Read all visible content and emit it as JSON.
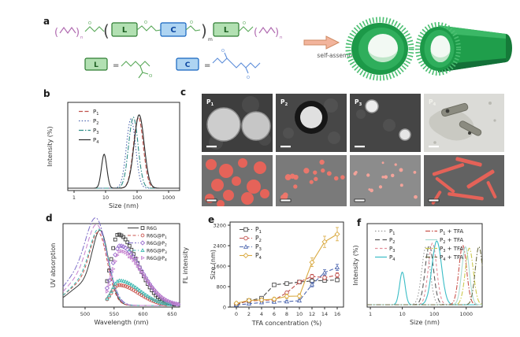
{
  "panel_labels": {
    "a": "a",
    "b": "b",
    "c": "c",
    "d": "d",
    "e": "e",
    "f": "f"
  },
  "panel_a": {
    "box_l": "L",
    "box_c": "C",
    "equals": "=",
    "paren_open": "(",
    "paren_close": ")",
    "sub_n": "n",
    "sub_m": "m",
    "o_atom": "O",
    "arrow_label": "self-assembly",
    "colors": {
      "peg": "#b06ab0",
      "linker": "#57a757",
      "c_unit": "#5b8dd9",
      "l_fill": "#b2e0b2",
      "l_border": "#2e7d32",
      "c_fill": "#aed4f2",
      "c_border": "#1565c0",
      "arrow_fill": "#f2b49c",
      "arrow_border": "#cf8a63",
      "tube_green": "#1c9948"
    }
  },
  "panel_c": {
    "tiles_top": [
      {
        "t": "P",
        "s": "1"
      },
      {
        "t": "P",
        "s": "2"
      },
      {
        "t": "P",
        "s": "3"
      },
      {
        "t": "P",
        "s": "4"
      }
    ]
  },
  "chart_data": [
    {
      "id": "b",
      "type": "line",
      "xscale": "log",
      "xlabel": "Size (nm)",
      "ylabel": "Intensity (%)",
      "xlim_log": [
        -0.2,
        3.35
      ],
      "xticks": [
        {
          "v": 0,
          "t": "1"
        },
        {
          "v": 1,
          "t": "10"
        },
        {
          "v": 2,
          "t": "100"
        },
        {
          "v": 3,
          "t": "1000"
        }
      ],
      "legend_position": "top-left",
      "grid": false,
      "series": [
        {
          "name": {
            "t": "P",
            "s": "1"
          },
          "color": "#bf504a",
          "dash": "5 2.5",
          "peaks": [
            {
              "size_nm": 110,
              "intensity": 92,
              "wlog": 0.155
            }
          ]
        },
        {
          "name": {
            "t": "P",
            "s": "2"
          },
          "color": "#5069b0",
          "dash": "1.5 2.2",
          "peaks": [
            {
              "size_nm": 64,
              "intensity": 90,
              "wlog": 0.145
            }
          ]
        },
        {
          "name": {
            "t": "P",
            "s": "3"
          },
          "color": "#2f8c86",
          "dash": "6 2 1.5 2",
          "peaks": [
            {
              "size_nm": 76,
              "intensity": 92,
              "wlog": 0.15
            }
          ]
        },
        {
          "name": {
            "t": "P",
            "s": "4"
          },
          "color": "#2b2b2b",
          "dash": "",
          "peaks": [
            {
              "size_nm": 9,
              "intensity": 44,
              "wlog": 0.085
            },
            {
              "size_nm": 116,
              "intensity": 95,
              "wlog": 0.16
            }
          ]
        }
      ]
    },
    {
      "id": "d",
      "type": "spectra",
      "xlabel": "Wavelength (nm)",
      "ylabel_left": "UV absorption",
      "ylabel_right": "FL intensity",
      "xlim": [
        462,
        663
      ],
      "xticks": [
        500,
        550,
        600,
        650
      ],
      "absorption": [
        {
          "name": "R6G",
          "color": "#3a3a3a",
          "dash": "",
          "peak_nm": 527,
          "height": 86,
          "width_nm": 14,
          "shoulder": {
            "peak_nm": 497,
            "height": 26,
            "width_nm": 26
          }
        },
        {
          "name": "R6G@P1",
          "color": "#c9534c",
          "dash": "4 2.5",
          "peak_nm": 524,
          "height": 82,
          "width_nm": 15,
          "shoulder": {
            "peak_nm": 494,
            "height": 28,
            "width_nm": 26
          }
        },
        {
          "name": "R6G@P2",
          "color": "#7d6ec9",
          "dash": "7 2 2 2",
          "peak_nm": 521,
          "height": 93,
          "width_nm": 18,
          "shoulder": {
            "peak_nm": 490,
            "height": 40,
            "width_nm": 28
          }
        },
        {
          "name": "R6G@P3",
          "color": "#3db8b0",
          "dash": "4 2.5",
          "peak_nm": 525,
          "height": 85,
          "width_nm": 16,
          "shoulder": {
            "peak_nm": 495,
            "height": 30,
            "width_nm": 26
          }
        },
        {
          "name": "R6G@P4",
          "color": "#c583cf",
          "dash": "6 3",
          "peak_nm": 522,
          "height": 88,
          "width_nm": 17,
          "shoulder": {
            "peak_nm": 492,
            "height": 34,
            "width_nm": 27
          }
        }
      ],
      "emission": [
        {
          "name": "R6G",
          "marker": "square",
          "color": "#3a3a3a",
          "peak_nm": 557,
          "height": 94,
          "wl": 13,
          "wr": 33
        },
        {
          "name": "R6G@P1",
          "marker": "circle",
          "color": "#c9534c",
          "peak_nm": 558,
          "height": 27,
          "wl": 13,
          "wr": 34
        },
        {
          "name": "R6G@P2",
          "marker": "diamond",
          "color": "#9a6fd0",
          "peak_nm": 560,
          "height": 79,
          "wl": 14,
          "wr": 36
        },
        {
          "name": "R6G@P3",
          "marker": "triangle",
          "color": "#3db8b0",
          "peak_nm": 559,
          "height": 33,
          "wl": 13,
          "wr": 35
        },
        {
          "name": "R6G@P4",
          "marker": "triangleRight",
          "color": "#c583cf",
          "peak_nm": 561,
          "height": 72,
          "wl": 14,
          "wr": 37
        }
      ],
      "legend": [
        {
          "t": "R6G"
        },
        {
          "t": "R6G@P",
          "s": "1"
        },
        {
          "t": "R6G@P",
          "s": "2"
        },
        {
          "t": "R6G@P",
          "s": "3"
        },
        {
          "t": "R6G@P",
          "s": "4"
        }
      ]
    },
    {
      "id": "e",
      "type": "scatter-line",
      "xlabel": "TFA concentration (%)",
      "ylabel": "Size (nm)",
      "x": [
        0,
        2,
        4,
        6,
        8,
        10,
        12,
        14,
        16
      ],
      "ylim": [
        0,
        3200
      ],
      "yticks": [
        0,
        800,
        1600,
        2400,
        3200
      ],
      "series": [
        {
          "name": {
            "t": "P",
            "s": "1"
          },
          "color": "#4a4a4a",
          "marker": "square",
          "dash": "5 2.5",
          "values": [
            100,
            250,
            350,
            870,
            920,
            980,
            1020,
            1040,
            1060
          ],
          "err": [
            40,
            50,
            60,
            60,
            60,
            60,
            60,
            70,
            70
          ]
        },
        {
          "name": {
            "t": "P",
            "s": "2"
          },
          "color": "#c0504d",
          "marker": "circle",
          "dash": "5 2.5",
          "values": [
            120,
            240,
            260,
            280,
            560,
            980,
            1200,
            1150,
            1250
          ],
          "err": [
            40,
            40,
            40,
            40,
            60,
            60,
            80,
            80,
            90
          ]
        },
        {
          "name": {
            "t": "P",
            "s": "3"
          },
          "color": "#5069b0",
          "marker": "triangle",
          "dash": "5 2.5",
          "values": [
            80,
            130,
            180,
            200,
            215,
            250,
            880,
            1350,
            1550
          ],
          "err": [
            30,
            30,
            40,
            40,
            40,
            50,
            90,
            110,
            120
          ]
        },
        {
          "name": {
            "t": "P",
            "s": "4"
          },
          "color": "#d9a93f",
          "marker": "diamond",
          "dash": "",
          "values": [
            150,
            260,
            280,
            310,
            420,
            430,
            1750,
            2550,
            2850
          ],
          "err": [
            60,
            60,
            60,
            70,
            90,
            90,
            170,
            220,
            260
          ]
        }
      ]
    },
    {
      "id": "f",
      "type": "line",
      "xscale": "log",
      "xlabel": "Size (nm)",
      "ylabel": "Intensity (%)",
      "xlim_log": [
        -0.1,
        3.5
      ],
      "xticks": [
        {
          "v": 0,
          "t": "1"
        },
        {
          "v": 1,
          "t": "10"
        },
        {
          "v": 2,
          "t": "100"
        },
        {
          "v": 3,
          "t": "1000"
        }
      ],
      "legend_position": "top-two-column",
      "grid": false,
      "series": [
        {
          "name": {
            "t": "P",
            "s": "1"
          },
          "color": "#9a9a9a",
          "dash": "1.5 2.4",
          "peaks": [
            {
              "size_nm": 55,
              "intensity": 80,
              "wlog": 0.13
            }
          ]
        },
        {
          "name": {
            "t": "P",
            "s": "2"
          },
          "color": "#5a5a5a",
          "dash": "6 3.5",
          "peaks": [
            {
              "size_nm": 70,
              "intensity": 82,
              "wlog": 0.13
            }
          ]
        },
        {
          "name": {
            "t": "P",
            "s": "3"
          },
          "color": "#e28f9a",
          "dash": "3.5 2.5",
          "peaks": [
            {
              "size_nm": 88,
              "intensity": 85,
              "wlog": 0.13
            }
          ]
        },
        {
          "name": {
            "t": "P",
            "s": "4"
          },
          "color": "#3abdc6",
          "dash": "",
          "peaks": [
            {
              "size_nm": 10,
              "intensity": 45,
              "wlog": 0.085
            },
            {
              "size_nm": 120,
              "intensity": 88,
              "wlog": 0.15
            }
          ]
        },
        {
          "name": {
            "t": "P",
            "s": "1",
            "x2": " + TFA"
          },
          "color": "#c9534c",
          "dash": "6 2 1.5 2",
          "peaks": [
            {
              "size_nm": 780,
              "intensity": 82,
              "wlog": 0.12
            }
          ]
        },
        {
          "name": {
            "t": "P",
            "s": "2",
            "x2": " + TFA"
          },
          "color": "#a9dcd3",
          "dash": "",
          "peaks": [
            {
              "size_nm": 950,
              "intensity": 80,
              "wlog": 0.115
            }
          ]
        },
        {
          "name": {
            "t": "P",
            "s": "3",
            "x2": " + TFA"
          },
          "color": "#cdc94f",
          "dash": "6 2 1.5 2",
          "peaks": [
            {
              "size_nm": 1250,
              "intensity": 78,
              "wlog": 0.125
            }
          ]
        },
        {
          "name": {
            "t": "P",
            "s": "4",
            "x2": " + TFA"
          },
          "color": "#6d6d45",
          "dash": "6 2 1.5 2",
          "peaks": [
            {
              "size_nm": 2500,
              "intensity": 80,
              "wlog": 0.115
            }
          ]
        }
      ]
    }
  ]
}
